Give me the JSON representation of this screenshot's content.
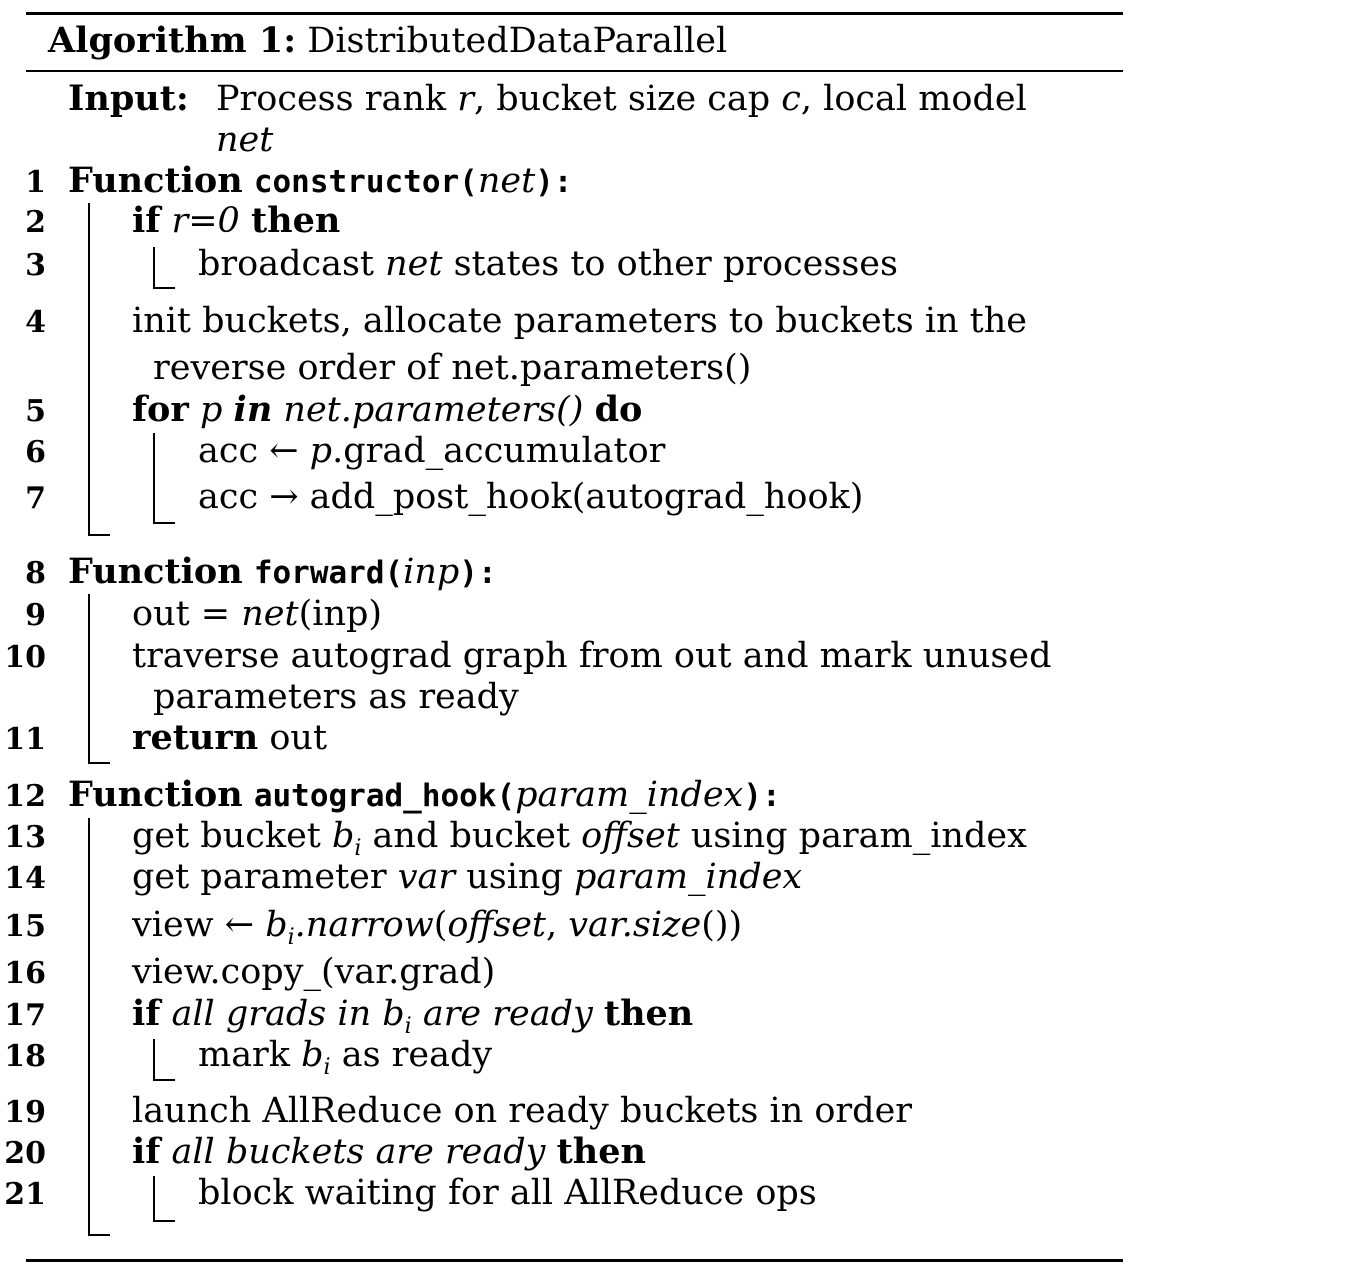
{
  "algorithm": {
    "header_label": "Algorithm 1:",
    "name": "DistributedDataParallel",
    "input_label": "Input:",
    "input_line1_pre": "Process rank ",
    "input_r": "r",
    "input_line1_mid": ", bucket size cap ",
    "input_c": "c",
    "input_line1_post": ", local model",
    "input_net": "net"
  },
  "keywords": {
    "function": "Function",
    "if": "if",
    "then": "then",
    "for": "for",
    "in": "in",
    "do": "do",
    "return": "return"
  },
  "lines": {
    "n1": "1",
    "n2": "2",
    "n3": "3",
    "n4": "4",
    "n5": "5",
    "n6": "6",
    "n7": "7",
    "n8": "8",
    "n9": "9",
    "n10": "10",
    "n11": "11",
    "n12": "12",
    "n13": "13",
    "n14": "14",
    "n15": "15",
    "n16": "16",
    "n17": "17",
    "n18": "18",
    "n19": "19",
    "n20": "20",
    "n21": "21",
    "l1_fn": "constructor(",
    "l1_arg": "net",
    "l1_close": "):",
    "l2_cond": "r=0",
    "l3_pre": "broadcast ",
    "l3_net": "net",
    "l3_post": " states to other processes",
    "l4_a": "init buckets, allocate parameters to buckets in the",
    "l4_b": "reverse order of net.parameters()",
    "l5_p": "p",
    "l5_iter": "net.parameters()",
    "l6_pre": "acc ← ",
    "l6_p": "p",
    "l6_post": ".grad_accumulator",
    "l7": "acc → add_post_hook(autograd_hook)",
    "l8_fn": "forward(",
    "l8_arg": "inp",
    "l8_close": "):",
    "l9_pre": "out = ",
    "l9_net": "net",
    "l9_post": "(inp)",
    "l10_a": "traverse autograd graph from out and mark unused",
    "l10_b": "parameters as ready",
    "l11_post": " out",
    "l12_fn": "autograd_hook(",
    "l12_arg": "param_index",
    "l12_close": "):",
    "l13_pre": "get bucket ",
    "l13_b": "b",
    "l13_i": "i",
    "l13_mid": " and bucket ",
    "l13_off": "offset",
    "l13_post": " using param_index",
    "l14_pre": "get parameter ",
    "l14_var": "var",
    "l14_mid": " using ",
    "l14_pi": "param_index",
    "l15_pre": "view ← ",
    "l15_b": "b",
    "l15_i": "i",
    "l15_narrow": ".narrow",
    "l15_open": "(",
    "l15_off": "offset",
    "l15_comma": ", ",
    "l15_var": "var.size",
    "l15_close": "())",
    "l16": "view.copy_(var.grad)",
    "l17_a": "all grads in ",
    "l17_b": "b",
    "l17_i": "i",
    "l17_c": " are ready",
    "l18_pre": "mark ",
    "l18_b": "b",
    "l18_i": "i",
    "l18_post": " as ready",
    "l19": "launch AllReduce on ready buckets in order",
    "l20_cond": "all buckets are ready",
    "l21": "block waiting for all AllReduce ops"
  }
}
